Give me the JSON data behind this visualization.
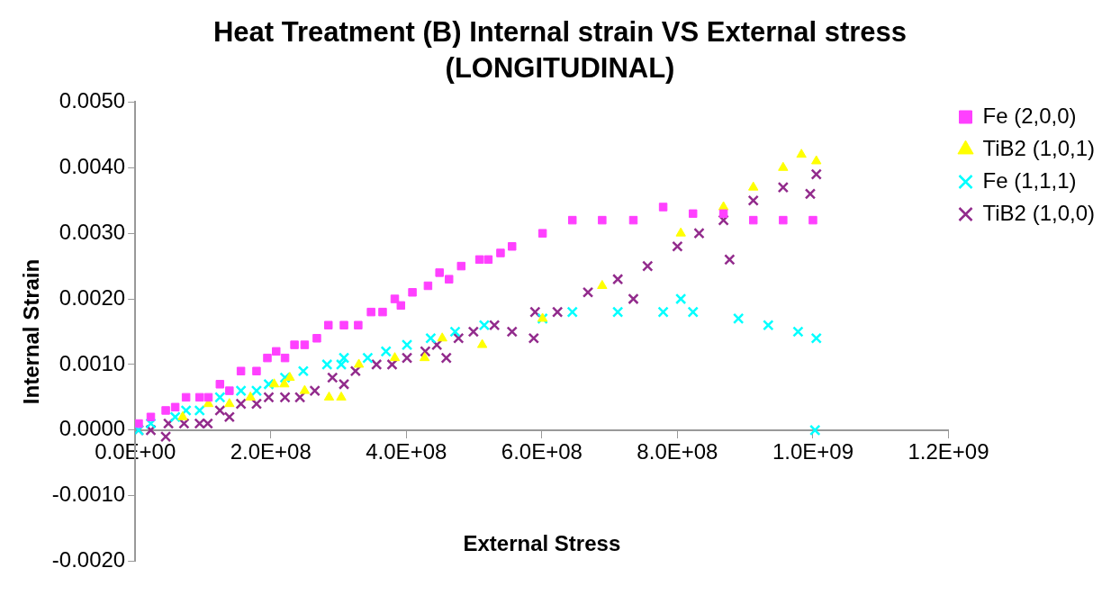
{
  "chart_data": {
    "type": "scatter",
    "title": "Heat Treatment (B) Internal strain VS External stress (LONGITUDINAL)",
    "xlabel": "External Stress",
    "ylabel": "Internal Strain",
    "xlim": [
      0,
      1200000000.0
    ],
    "xticks": [
      {
        "value": 0,
        "label": "0.0E+00"
      },
      {
        "value": 200000000.0,
        "label": "2.0E+08"
      },
      {
        "value": 400000000.0,
        "label": "4.0E+08"
      },
      {
        "value": 600000000.0,
        "label": "6.0E+08"
      },
      {
        "value": 800000000.0,
        "label": "8.0E+08"
      },
      {
        "value": 1000000000.0,
        "label": "1.0E+09"
      },
      {
        "value": 1200000000.0,
        "label": "1.2E+09"
      }
    ],
    "ylim": [
      -0.002,
      0.005
    ],
    "yticks": [
      {
        "value": -0.002,
        "label": "-0.0020"
      },
      {
        "value": -0.001,
        "label": "-0.0010"
      },
      {
        "value": 0,
        "label": "0.0000"
      },
      {
        "value": 0.001,
        "label": "0.0010"
      },
      {
        "value": 0.002,
        "label": "0.0020"
      },
      {
        "value": 0.003,
        "label": "0.0030"
      },
      {
        "value": 0.004,
        "label": "0.0040"
      },
      {
        "value": 0.005,
        "label": "0.0050"
      }
    ],
    "legend": "right",
    "series": [
      {
        "name": "Fe (2,0,0)",
        "color": "#ff40ff",
        "marker": "square",
        "x": [
          5000000.0,
          23000000.0,
          45000000.0,
          59000000.0,
          75000000.0,
          95000000.0,
          108000000.0,
          125000000.0,
          139000000.0,
          156000000.0,
          179000000.0,
          195000000.0,
          208000000.0,
          221000000.0,
          235000000.0,
          250000000.0,
          268000000.0,
          285000000.0,
          308000000.0,
          329000000.0,
          348000000.0,
          365000000.0,
          383000000.0,
          392000000.0,
          409000000.0,
          432000000.0,
          449000000.0,
          463000000.0,
          481000000.0,
          508000000.0,
          521000000.0,
          539000000.0,
          556000000.0,
          601000000.0,
          645000000.0,
          689000000.0,
          735000000.0,
          779000000.0,
          823000000.0,
          868000000.0,
          912000000.0,
          956000000.0,
          1000000000.0
        ],
        "values": [
          0.0001,
          0.0002,
          0.0003,
          0.00035,
          0.0005,
          0.0005,
          0.0005,
          0.0007,
          0.0006,
          0.0009,
          0.0009,
          0.0011,
          0.0012,
          0.0011,
          0.0013,
          0.0013,
          0.0014,
          0.0016,
          0.0016,
          0.0016,
          0.0018,
          0.0018,
          0.002,
          0.0019,
          0.0021,
          0.0022,
          0.0024,
          0.0023,
          0.0025,
          0.0026,
          0.0026,
          0.0027,
          0.0028,
          0.003,
          0.0032,
          0.0032,
          0.0032,
          0.0034,
          0.0033,
          0.0033,
          0.0032,
          0.0032,
          0.0032
        ]
      },
      {
        "name": "TiB2 (1,0,1)",
        "color": "#ffff00",
        "marker": "triangle",
        "x": [
          70000000.0,
          108000000.0,
          139000000.0,
          170000000.0,
          205000000.0,
          220000000.0,
          228000000.0,
          250000000.0,
          286000000.0,
          304000000.0,
          330000000.0,
          383000000.0,
          427000000.0,
          453000000.0,
          512000000.0,
          601000000.0,
          689000000.0,
          805000000.0,
          868000000.0,
          912000000.0,
          956000000.0,
          983000000.0,
          1005000000.0
        ],
        "values": [
          0.0002,
          0.0004,
          0.0004,
          0.0005,
          0.0007,
          0.0007,
          0.0008,
          0.0006,
          0.0005,
          0.0005,
          0.001,
          0.0011,
          0.0011,
          0.0014,
          0.0013,
          0.0017,
          0.0022,
          0.003,
          0.0034,
          0.0037,
          0.004,
          0.0042,
          0.0041
        ]
      },
      {
        "name": "Fe (1,1,1)",
        "color": "#00ffff",
        "marker": "cross",
        "x": [
          5000000.0,
          23000000.0,
          59000000.0,
          75000000.0,
          95000000.0,
          125000000.0,
          156000000.0,
          179000000.0,
          197000000.0,
          221000000.0,
          248000000.0,
          283000000.0,
          304000000.0,
          308000000.0,
          343000000.0,
          370000000.0,
          401000000.0,
          436000000.0,
          472000000.0,
          515000000.0,
          601000000.0,
          645000000.0,
          712000000.0,
          779000000.0,
          805000000.0,
          823000000.0,
          890000000.0,
          934000000.0,
          978000000.0,
          1005000000.0,
          1003000000.0
        ],
        "values": [
          0.0,
          0.0001,
          0.0002,
          0.0003,
          0.0003,
          0.0005,
          0.0006,
          0.0006,
          0.0007,
          0.0008,
          0.0009,
          0.001,
          0.001,
          0.0011,
          0.0011,
          0.0012,
          0.0013,
          0.0014,
          0.0015,
          0.0016,
          0.0017,
          0.0018,
          0.0018,
          0.0018,
          0.002,
          0.0018,
          0.0017,
          0.0016,
          0.0015,
          0.0014,
          0.0
        ]
      },
      {
        "name": "TiB2 (1,0,0)",
        "color": "#922b8c",
        "marker": "cross",
        "x": [
          5000000.0,
          23000000.0,
          45000000.0,
          49000000.0,
          72000000.0,
          95000000.0,
          107000000.0,
          125000000.0,
          139000000.0,
          156000000.0,
          179000000.0,
          197000000.0,
          221000000.0,
          243000000.0,
          265000000.0,
          291000000.0,
          308000000.0,
          325000000.0,
          356000000.0,
          379000000.0,
          401000000.0,
          428000000.0,
          445000000.0,
          459000000.0,
          477000000.0,
          499000000.0,
          530000000.0,
          556000000.0,
          588000000.0,
          590000000.0,
          623000000.0,
          668000000.0,
          712000000.0,
          735000000.0,
          756000000.0,
          800000000.0,
          832000000.0,
          868000000.0,
          877000000.0,
          912000000.0,
          956000000.0,
          996000000.0,
          1005000000.0
        ],
        "values": [
          0.0,
          0.0,
          -0.0001,
          0.0001,
          0.0001,
          0.0001,
          0.0001,
          0.0003,
          0.0002,
          0.0004,
          0.0004,
          0.0005,
          0.0005,
          0.0005,
          0.0006,
          0.0008,
          0.0007,
          0.0009,
          0.001,
          0.001,
          0.0011,
          0.0012,
          0.0013,
          0.0011,
          0.0014,
          0.0015,
          0.0016,
          0.0015,
          0.0014,
          0.0018,
          0.0018,
          0.0021,
          0.0023,
          0.002,
          0.0025,
          0.0028,
          0.003,
          0.0032,
          0.0026,
          0.0035,
          0.0037,
          0.0036,
          0.0039
        ]
      }
    ]
  }
}
